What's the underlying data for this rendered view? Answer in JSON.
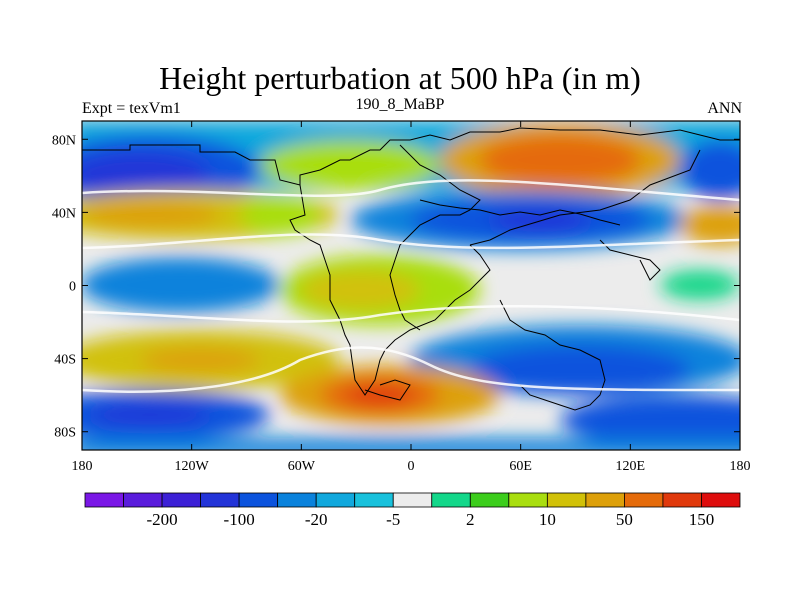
{
  "title": "Height perturbation at 500 hPa (in m)",
  "subtitle_left": "Expt = texVm1",
  "subtitle_center": "190_8_MaBP",
  "subtitle_right": "ANN",
  "x_ticks": [
    "180",
    "120W",
    "60W",
    "0",
    "60E",
    "120E",
    "180"
  ],
  "y_ticks": [
    "80N",
    "40N",
    "0",
    "40S",
    "80S"
  ],
  "colorbar": {
    "colors": [
      "#7a17e6",
      "#5a1cdc",
      "#3c20d6",
      "#2334d8",
      "#0b53dd",
      "#0a82dc",
      "#11a8dd",
      "#19c1dc",
      "#ececec",
      "#13d78a",
      "#3ccd1c",
      "#a9de0f",
      "#d1c108",
      "#dda00a",
      "#e56b0a",
      "#e0390c",
      "#de0d0d"
    ],
    "labels": [
      "-200",
      "-100",
      "-20",
      "-5",
      "2",
      "10",
      "50",
      "150"
    ]
  }
}
